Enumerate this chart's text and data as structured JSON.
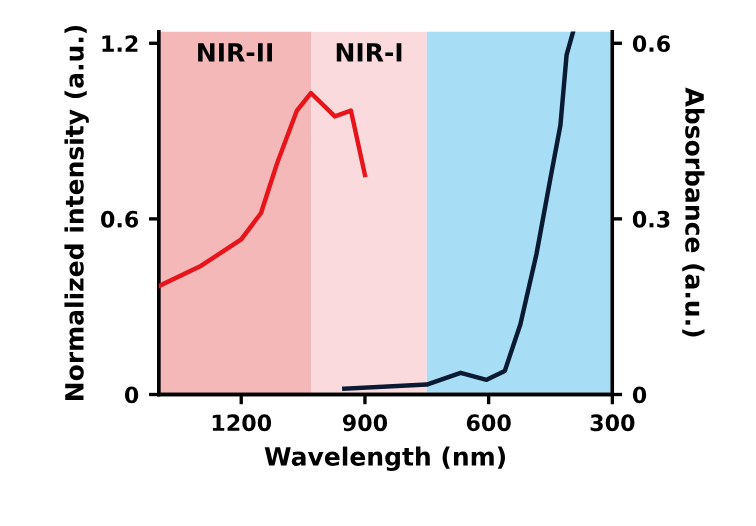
{
  "chart_data": {
    "type": "line",
    "xlabel": "Wavelength (nm)",
    "ylabel": "Normalized intensity (a.u.)",
    "y2label": "Absorbance (a.u.)",
    "xlim": [
      1400,
      300
    ],
    "xticks": [
      1200,
      900,
      600,
      300
    ],
    "ylim": [
      0,
      1.24
    ],
    "yticks": [
      0,
      0.6,
      1.2
    ],
    "y2lim": [
      0,
      0.62
    ],
    "y2ticks": [
      0,
      0.3,
      0.6
    ],
    "series": [
      {
        "color": "#e8141c",
        "x": [
          1400,
          1297,
          1200,
          1152,
          1113,
          1065,
          1031,
          973,
          934,
          900
        ],
        "values": [
          0.37,
          0.44,
          0.53,
          0.62,
          0.79,
          0.97,
          1.03,
          0.95,
          0.97,
          0.75
        ]
      },
      {
        "color": "#0a1a33",
        "axis": "y2",
        "x": [
          950,
          750,
          668,
          605,
          561,
          523,
          484,
          450,
          426,
          411,
          395
        ],
        "values": [
          0.01,
          0.017,
          0.037,
          0.025,
          0.04,
          0.12,
          0.24,
          0.37,
          0.46,
          0.58,
          0.62
        ]
      }
    ],
    "bands": [
      {
        "axis": "x",
        "from": 1400,
        "to": 1030,
        "label": "NIR-II",
        "color": "#f4b8b8"
      },
      {
        "axis": "x",
        "from": 1030,
        "to": 750,
        "label": "NIR-I",
        "color": "#fadadd"
      },
      {
        "axis": "x",
        "from": 750,
        "to": 300,
        "color": "#a8def5"
      }
    ],
    "grid": false,
    "legend": false
  }
}
